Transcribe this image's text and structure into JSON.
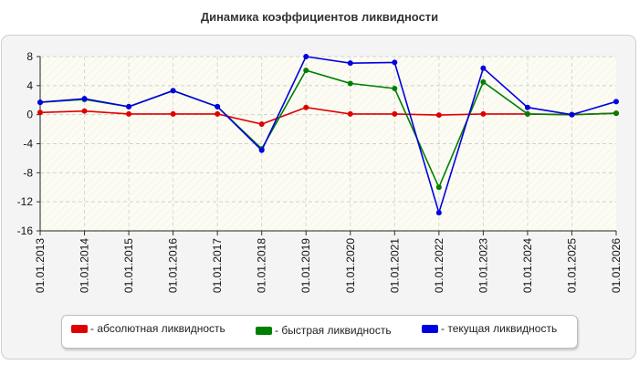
{
  "chart_data": {
    "type": "line",
    "title": "Динамика коэффициентов ликвидности",
    "xlabel": "",
    "ylabel": "",
    "categories": [
      "01.01.2013",
      "01.01.2014",
      "01.01.2015",
      "01.01.2016",
      "01.01.2017",
      "01.01.2018",
      "01.01.2019",
      "01.01.2020",
      "01.01.2021",
      "01.01.2022",
      "01.01.2023",
      "01.01.2024",
      "01.01.2025",
      "01.01.2026"
    ],
    "ylim": [
      -16,
      8
    ],
    "yticks": [
      8,
      4,
      0,
      -4,
      -8,
      -12,
      -16
    ],
    "grid": true,
    "legend_position": "bottom",
    "series": [
      {
        "name": "- абсолютная ликвидность",
        "color": "#e00000",
        "values": [
          0.3,
          0.5,
          0.1,
          0.1,
          0.1,
          -1.3,
          1.0,
          0.1,
          0.1,
          -0.05,
          0.1,
          0.1,
          0.0,
          0.2
        ]
      },
      {
        "name": "- быстрая ликвидность",
        "color": "#008000",
        "values": [
          1.7,
          2.1,
          1.1,
          3.3,
          1.1,
          -4.7,
          6.1,
          4.3,
          3.6,
          -10.0,
          4.5,
          0.1,
          0.0,
          0.2
        ]
      },
      {
        "name": "- текущая ликвидность",
        "color": "#0000e0",
        "values": [
          1.7,
          2.2,
          1.1,
          3.3,
          1.1,
          -4.9,
          8.0,
          7.1,
          7.2,
          -13.5,
          6.4,
          1.0,
          0.0,
          1.8
        ]
      }
    ]
  }
}
